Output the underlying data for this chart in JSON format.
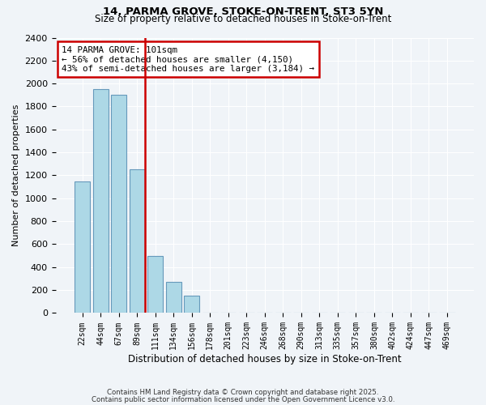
{
  "title1": "14, PARMA GROVE, STOKE-ON-TRENT, ST3 5YN",
  "title2": "Size of property relative to detached houses in Stoke-on-Trent",
  "xlabel": "Distribution of detached houses by size in Stoke-on-Trent",
  "ylabel": "Number of detached properties",
  "bins": [
    "22sqm",
    "44sqm",
    "67sqm",
    "89sqm",
    "111sqm",
    "134sqm",
    "156sqm",
    "178sqm",
    "201sqm",
    "223sqm",
    "246sqm",
    "268sqm",
    "290sqm",
    "313sqm",
    "335sqm",
    "357sqm",
    "380sqm",
    "402sqm",
    "424sqm",
    "447sqm",
    "469sqm"
  ],
  "values": [
    1150,
    1950,
    1900,
    1250,
    500,
    270,
    150,
    0,
    0,
    0,
    0,
    0,
    0,
    0,
    0,
    0,
    0,
    0,
    0,
    0,
    0
  ],
  "bar_color": "#add8e6",
  "bar_edge_color": "#6699bb",
  "vline_color": "#cc0000",
  "annotation_text": "14 PARMA GROVE: 101sqm\n← 56% of detached houses are smaller (4,150)\n43% of semi-detached houses are larger (3,184) →",
  "ylim": [
    0,
    2400
  ],
  "yticks": [
    0,
    200,
    400,
    600,
    800,
    1000,
    1200,
    1400,
    1600,
    1800,
    2000,
    2200,
    2400
  ],
  "footer1": "Contains HM Land Registry data © Crown copyright and database right 2025.",
  "footer2": "Contains public sector information licensed under the Open Government Licence v3.0.",
  "background_color": "#f0f4f8"
}
